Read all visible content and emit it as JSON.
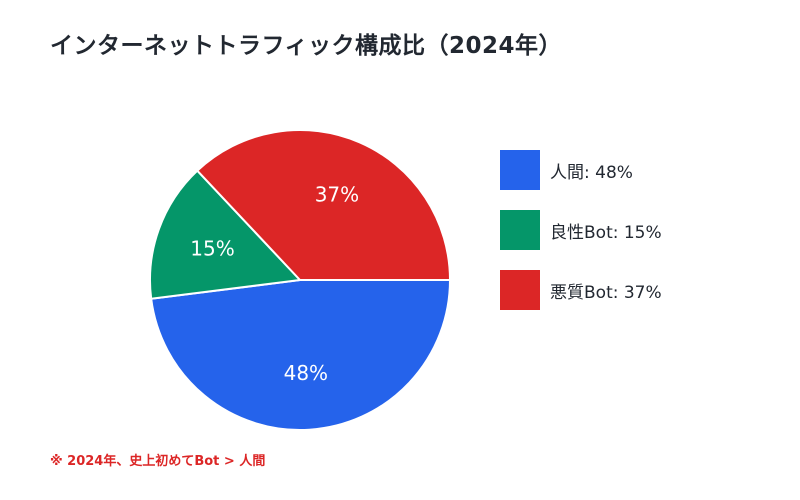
{
  "title": "インターネットトラフィック構成比（2024年）",
  "chart_data": {
    "type": "pie",
    "title": "インターネットトラフィック構成比（2024年）",
    "slices": [
      {
        "name": "人間",
        "value": 48,
        "label": "48%",
        "color": "#2563eb",
        "legend": "人間: 48%"
      },
      {
        "name": "良性Bot",
        "value": 15,
        "label": "15%",
        "color": "#059669",
        "legend": "良性Bot: 15%"
      },
      {
        "name": "悪質Bot",
        "value": 37,
        "label": "37%",
        "color": "#dc2626",
        "legend": "悪質Bot: 37%"
      }
    ],
    "legend_position": "right"
  },
  "note": "※ 2024年、史上初めてBot > 人間"
}
